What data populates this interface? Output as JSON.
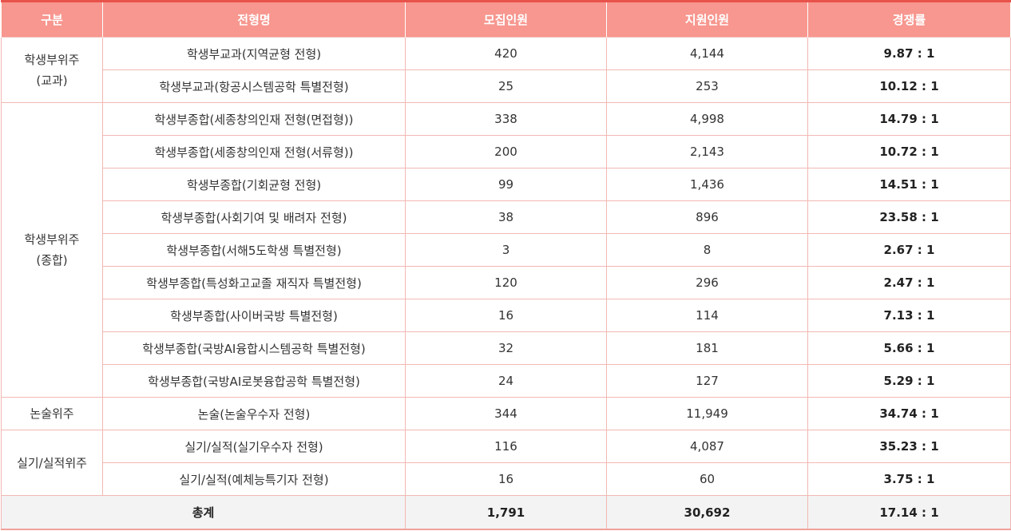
{
  "headers": [
    "구분",
    "전형명",
    "모집인원",
    "지원인원",
    "경쟁률"
  ],
  "groups": [
    {
      "label_lines": [
        "학생부위주",
        "(교과)"
      ],
      "rowspan": 2
    },
    {
      "label_lines": [
        "학생부위주",
        "(종합)"
      ],
      "rowspan": 9
    },
    {
      "label_lines": [
        "논술위주"
      ],
      "rowspan": 1
    },
    {
      "label_lines": [
        "실기/실적위주"
      ],
      "rowspan": 2
    }
  ],
  "rows": [
    {
      "name": "학생부교과(지역균형 전형)",
      "quota": "420",
      "applicants": "4,144",
      "rate": "9.87 : 1"
    },
    {
      "name": "학생부교과(항공시스템공학 특별전형)",
      "quota": "25",
      "applicants": "253",
      "rate": "10.12 : 1"
    },
    {
      "name": "학생부종합(세종창의인재 전형(면접형))",
      "quota": "338",
      "applicants": "4,998",
      "rate": "14.79 : 1"
    },
    {
      "name": "학생부종합(세종창의인재 전형(서류형))",
      "quota": "200",
      "applicants": "2,143",
      "rate": "10.72 : 1"
    },
    {
      "name": "학생부종합(기회균형 전형)",
      "quota": "99",
      "applicants": "1,436",
      "rate": "14.51 : 1"
    },
    {
      "name": "학생부종합(사회기여 및 배려자 전형)",
      "quota": "38",
      "applicants": "896",
      "rate": "23.58 : 1"
    },
    {
      "name": "학생부종합(서해5도학생 특별전형)",
      "quota": "3",
      "applicants": "8",
      "rate": "2.67 : 1"
    },
    {
      "name": "학생부종합(특성화고교졸 재직자 특별전형)",
      "quota": "120",
      "applicants": "296",
      "rate": "2.47 : 1"
    },
    {
      "name": "학생부종합(사이버국방 특별전형)",
      "quota": "16",
      "applicants": "114",
      "rate": "7.13 : 1"
    },
    {
      "name": "학생부종합(국방AI융합시스템공학 특별전형)",
      "quota": "32",
      "applicants": "181",
      "rate": "5.66 : 1"
    },
    {
      "name": "학생부종합(국방AI로봇융합공학 특별전형)",
      "quota": "24",
      "applicants": "127",
      "rate": "5.29 : 1"
    },
    {
      "name": "논술(논술우수자 전형)",
      "quota": "344",
      "applicants": "11,949",
      "rate": "34.74 : 1"
    },
    {
      "name": "실기/실적(실기우수자 전형)",
      "quota": "116",
      "applicants": "4,087",
      "rate": "35.23 : 1"
    },
    {
      "name": "실기/실적(예체능특기자 전형)",
      "quota": "16",
      "applicants": "60",
      "rate": "3.75 : 1"
    }
  ],
  "total": {
    "label": "총계",
    "quota": "1,791",
    "applicants": "30,692",
    "rate": "17.14 : 1"
  },
  "colors": {
    "header_bg": "#f7978f",
    "header_top": "#e8524a",
    "border": "#f2b8b3",
    "total_bg": "#f3f3f3"
  }
}
